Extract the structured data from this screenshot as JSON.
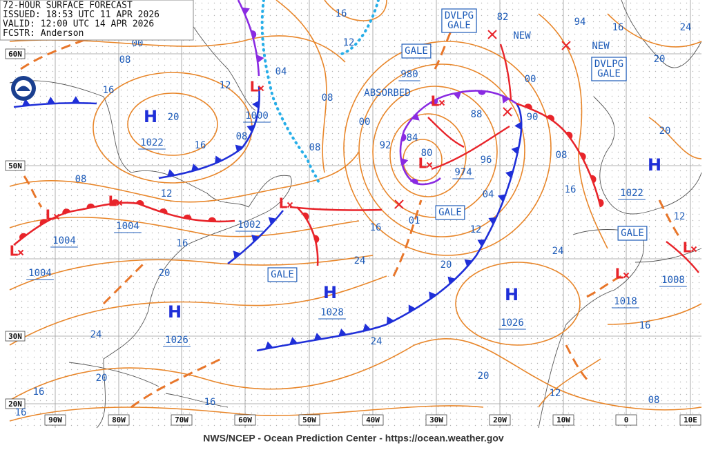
{
  "header": {
    "lines": [
      "72-HOUR SURFACE FORECAST",
      "ISSUED: 18:53 UTC 11 APR 2026",
      "VALID: 12:00 UTC 14 APR 2026",
      "FCSTR: Anderson"
    ]
  },
  "footer": "NWS/NCEP - Ocean Prediction Center - https://ocean.weather.gov",
  "latitude_labels": [
    "60N",
    "50N",
    "30N",
    "20N"
  ],
  "longitude_labels": [
    "90W",
    "80W",
    "70W",
    "60W",
    "50W",
    "40W",
    "30W",
    "20W",
    "10W",
    "0",
    "10E"
  ],
  "centers": [
    {
      "symbol": "H",
      "pressure": "1022"
    },
    {
      "symbol": "L",
      "pressure": "1000"
    },
    {
      "symbol": "L",
      "pressure": "1004"
    },
    {
      "symbol": "L",
      "pressure": "1004"
    },
    {
      "symbol": "L",
      "pressure": "1004"
    },
    {
      "symbol": "L",
      "pressure": "1002"
    },
    {
      "symbol": "L",
      "pressure": "974"
    },
    {
      "symbol": "H",
      "pressure": "1028"
    },
    {
      "symbol": "H",
      "pressure": "1026"
    },
    {
      "symbol": "H",
      "pressure": "1026"
    },
    {
      "symbol": "H",
      "pressure": "1022"
    },
    {
      "symbol": "L",
      "pressure": "1008"
    },
    {
      "symbol": "L",
      "pressure": "1018"
    },
    {
      "symbol": "L",
      "pressure": "980"
    }
  ],
  "forecast_positions": [
    "01",
    "90",
    "82",
    "94"
  ],
  "warnings": [
    "GALE",
    "DVLPG GALE",
    "NEW",
    "NEW",
    "DVLPG GALE",
    "GALE",
    "GALE",
    "GALE",
    "ABSORBED"
  ],
  "isobar_labels": [
    "16",
    "12",
    "00",
    "08",
    "16",
    "20",
    "16",
    "04",
    "12",
    "08",
    "08",
    "08",
    "08",
    "12",
    "16",
    "20",
    "24",
    "20",
    "16",
    "16",
    "16",
    "24",
    "16",
    "24",
    "20",
    "12",
    "04",
    "96",
    "88",
    "84",
    "80",
    "92",
    "00",
    "00",
    "08",
    "16",
    "24",
    "20",
    "12",
    "08",
    "16",
    "20",
    "20",
    "16",
    "24",
    "12"
  ]
}
